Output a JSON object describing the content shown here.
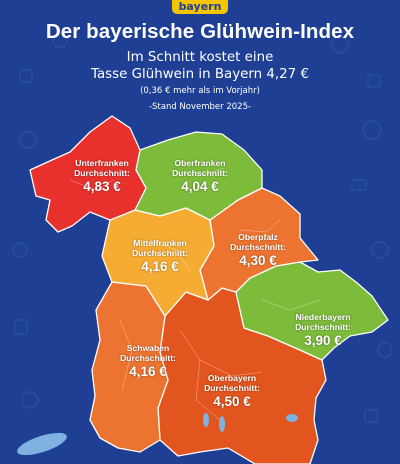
{
  "brand": "bayern",
  "header": {
    "title": "Der bayerische Glühwein-Index",
    "line1": "Im Schnitt kostet eine",
    "line2": "Tasse Glühwein in Bayern 4,27 €",
    "line3": "(0,36 € mehr als im Vorjahr)",
    "stand": "-Stand November 2025-"
  },
  "colors": {
    "background": "#1f3f95",
    "red": "#e8312d",
    "green": "#7dbb3a",
    "orange": "#ec7430",
    "light_orange": "#f6ac33",
    "dark_orange": "#e2551e",
    "brand_yellow": "#f4c400",
    "lake": "#7fb2e0"
  },
  "regions": [
    {
      "key": "unterfranken",
      "name": "Unterfranken",
      "avg_label": "Durchschnitt:",
      "price": "4,83 €"
    },
    {
      "key": "oberfranken",
      "name": "Oberfranken",
      "avg_label": "Durchschnitt:",
      "price": "4,04 €"
    },
    {
      "key": "mittelfranken",
      "name": "Mittelfranken",
      "avg_label": "Durchschnitt:",
      "price": "4,16 €"
    },
    {
      "key": "oberpfalz",
      "name": "Oberpfalz",
      "avg_label": "Durchschnitt:",
      "price": "4,30 €"
    },
    {
      "key": "niederbayern",
      "name": "Niederbayern",
      "avg_label": "Durchschnitt:",
      "price": "3,90 €"
    },
    {
      "key": "schwaben",
      "name": "Schwaben",
      "avg_label": "Durchschnitt:",
      "price": "4,16 €"
    },
    {
      "key": "oberbayern",
      "name": "Oberbayern",
      "avg_label": "Durchschnitt:",
      "price": "4,50 €"
    }
  ]
}
